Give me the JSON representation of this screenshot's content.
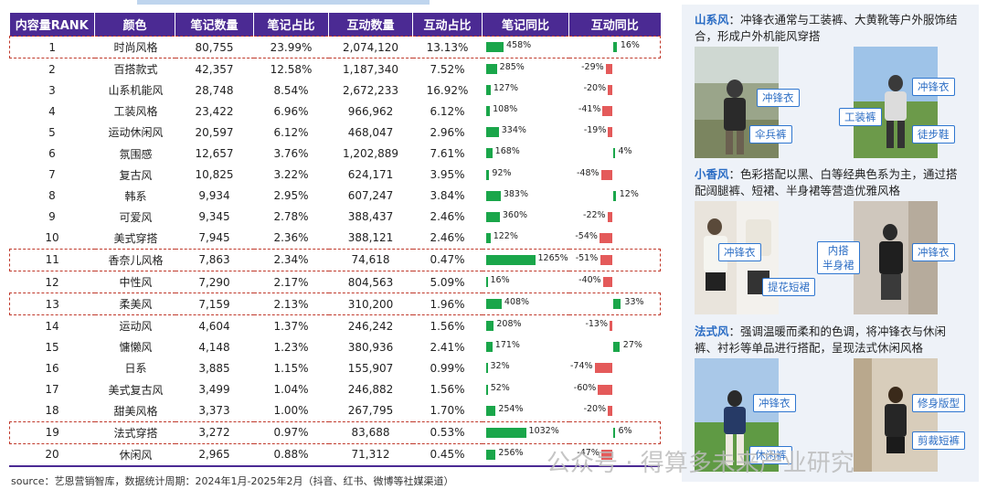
{
  "table": {
    "headers": [
      "内容量RANK",
      "颜色",
      "笔记数量",
      "笔记占比",
      "互动数量",
      "互动占比",
      "笔记同比",
      "互动同比"
    ],
    "rows": [
      {
        "rank": "1",
        "name": "时尚风格",
        "notes": "80,755",
        "note_pct": "23.99%",
        "inter": "2,074,120",
        "inter_pct": "13.13%",
        "note_yoy": 458,
        "note_yoy_label": "458%",
        "inter_yoy": 16,
        "inter_yoy_label": "16%",
        "highlight": true
      },
      {
        "rank": "2",
        "name": "百搭款式",
        "notes": "42,357",
        "note_pct": "12.58%",
        "inter": "1,187,340",
        "inter_pct": "7.52%",
        "note_yoy": 285,
        "note_yoy_label": "285%",
        "inter_yoy": -29,
        "inter_yoy_label": "-29%",
        "highlight": false
      },
      {
        "rank": "3",
        "name": "山系机能风",
        "notes": "28,748",
        "note_pct": "8.54%",
        "inter": "2,672,233",
        "inter_pct": "16.92%",
        "note_yoy": 127,
        "note_yoy_label": "127%",
        "inter_yoy": -20,
        "inter_yoy_label": "-20%",
        "highlight": false
      },
      {
        "rank": "4",
        "name": "工装风格",
        "notes": "23,422",
        "note_pct": "6.96%",
        "inter": "966,962",
        "inter_pct": "6.12%",
        "note_yoy": 108,
        "note_yoy_label": "108%",
        "inter_yoy": -41,
        "inter_yoy_label": "-41%",
        "highlight": false
      },
      {
        "rank": "5",
        "name": "运动休闲风",
        "notes": "20,597",
        "note_pct": "6.12%",
        "inter": "468,047",
        "inter_pct": "2.96%",
        "note_yoy": 334,
        "note_yoy_label": "334%",
        "inter_yoy": -19,
        "inter_yoy_label": "-19%",
        "highlight": false
      },
      {
        "rank": "6",
        "name": "氛围感",
        "notes": "12,657",
        "note_pct": "3.76%",
        "inter": "1,202,889",
        "inter_pct": "7.61%",
        "note_yoy": 168,
        "note_yoy_label": "168%",
        "inter_yoy": 4,
        "inter_yoy_label": "4%",
        "highlight": false
      },
      {
        "rank": "7",
        "name": "复古风",
        "notes": "10,825",
        "note_pct": "3.22%",
        "inter": "624,171",
        "inter_pct": "3.95%",
        "note_yoy": 92,
        "note_yoy_label": "92%",
        "inter_yoy": -48,
        "inter_yoy_label": "-48%",
        "highlight": false
      },
      {
        "rank": "8",
        "name": "韩系",
        "notes": "9,934",
        "note_pct": "2.95%",
        "inter": "607,247",
        "inter_pct": "3.84%",
        "note_yoy": 383,
        "note_yoy_label": "383%",
        "inter_yoy": 12,
        "inter_yoy_label": "12%",
        "highlight": false
      },
      {
        "rank": "9",
        "name": "可爱风",
        "notes": "9,345",
        "note_pct": "2.78%",
        "inter": "388,437",
        "inter_pct": "2.46%",
        "note_yoy": 360,
        "note_yoy_label": "360%",
        "inter_yoy": -22,
        "inter_yoy_label": "-22%",
        "highlight": false
      },
      {
        "rank": "10",
        "name": "美式穿搭",
        "notes": "7,945",
        "note_pct": "2.36%",
        "inter": "388,121",
        "inter_pct": "2.46%",
        "note_yoy": 122,
        "note_yoy_label": "122%",
        "inter_yoy": -54,
        "inter_yoy_label": "-54%",
        "highlight": false
      },
      {
        "rank": "11",
        "name": "香奈儿风格",
        "notes": "7,863",
        "note_pct": "2.34%",
        "inter": "74,618",
        "inter_pct": "0.47%",
        "note_yoy": 1265,
        "note_yoy_label": "1265%",
        "inter_yoy": -51,
        "inter_yoy_label": "-51%",
        "highlight": true
      },
      {
        "rank": "12",
        "name": "中性风",
        "notes": "7,290",
        "note_pct": "2.17%",
        "inter": "804,563",
        "inter_pct": "5.09%",
        "note_yoy": 16,
        "note_yoy_label": "16%",
        "inter_yoy": -40,
        "inter_yoy_label": "-40%",
        "highlight": false
      },
      {
        "rank": "13",
        "name": "柔美风",
        "notes": "7,159",
        "note_pct": "2.13%",
        "inter": "310,200",
        "inter_pct": "1.96%",
        "note_yoy": 408,
        "note_yoy_label": "408%",
        "inter_yoy": 33,
        "inter_yoy_label": "33%",
        "highlight": true
      },
      {
        "rank": "14",
        "name": "运动风",
        "notes": "4,604",
        "note_pct": "1.37%",
        "inter": "246,242",
        "inter_pct": "1.56%",
        "note_yoy": 208,
        "note_yoy_label": "208%",
        "inter_yoy": -13,
        "inter_yoy_label": "-13%",
        "highlight": false
      },
      {
        "rank": "15",
        "name": "慵懒风",
        "notes": "4,148",
        "note_pct": "1.23%",
        "inter": "380,936",
        "inter_pct": "2.41%",
        "note_yoy": 171,
        "note_yoy_label": "171%",
        "inter_yoy": 27,
        "inter_yoy_label": "27%",
        "highlight": false
      },
      {
        "rank": "16",
        "name": "日系",
        "notes": "3,885",
        "note_pct": "1.15%",
        "inter": "155,907",
        "inter_pct": "0.99%",
        "note_yoy": 32,
        "note_yoy_label": "32%",
        "inter_yoy": -74,
        "inter_yoy_label": "-74%",
        "highlight": false
      },
      {
        "rank": "17",
        "name": "美式复古风",
        "notes": "3,499",
        "note_pct": "1.04%",
        "inter": "246,882",
        "inter_pct": "1.56%",
        "note_yoy": 52,
        "note_yoy_label": "52%",
        "inter_yoy": -60,
        "inter_yoy_label": "-60%",
        "highlight": false
      },
      {
        "rank": "18",
        "name": "甜美风格",
        "notes": "3,373",
        "note_pct": "1.00%",
        "inter": "267,795",
        "inter_pct": "1.70%",
        "note_yoy": 254,
        "note_yoy_label": "254%",
        "inter_yoy": -20,
        "inter_yoy_label": "-20%",
        "highlight": false
      },
      {
        "rank": "19",
        "name": "法式穿搭",
        "notes": "3,272",
        "note_pct": "0.97%",
        "inter": "83,688",
        "inter_pct": "0.53%",
        "note_yoy": 1032,
        "note_yoy_label": "1032%",
        "inter_yoy": 6,
        "inter_yoy_label": "6%",
        "highlight": true
      },
      {
        "rank": "20",
        "name": "休闲风",
        "notes": "2,965",
        "note_pct": "0.88%",
        "inter": "71,312",
        "inter_pct": "0.45%",
        "note_yoy": 256,
        "note_yoy_label": "256%",
        "inter_yoy": -47,
        "inter_yoy_label": "-47%",
        "highlight": false
      }
    ]
  },
  "source": "source：艺恩营销智库，数据统计周期：2024年1月-2025年2月（抖音、红书、微博等社媒渠道）",
  "panel": {
    "sections": [
      {
        "keyword": "山系风",
        "text": "：冲锋衣通常与工装裤、大黄靴等户外服饰结合，形成户外机能风穿搭",
        "tags": [
          "冲锋衣",
          "伞兵裤",
          "冲锋衣",
          "工装裤",
          "徒步鞋"
        ]
      },
      {
        "keyword": "小香风",
        "text": "：色彩搭配以黑、白等经典色系为主，通过搭配阔腿裤、短裙、半身裙等营造优雅风格",
        "tags": [
          "冲锋衣",
          "提花短裙",
          "内搭\n半身裙",
          "冲锋衣"
        ]
      },
      {
        "keyword": "法式风",
        "text": "：强调温暖而柔和的色调，将冲锋衣与休闲裤、衬衫等单品进行搭配，呈现法式休闲风格",
        "tags": [
          "冲锋衣",
          "休闲裤",
          "修身版型",
          "剪裁短裤"
        ]
      }
    ]
  },
  "watermark": "公众号 · 得算多未来产业研究",
  "colors": {
    "header": "#4b2a93",
    "green": "#1aa64a",
    "red": "#e45a5a",
    "accent": "#2a6cc4"
  }
}
